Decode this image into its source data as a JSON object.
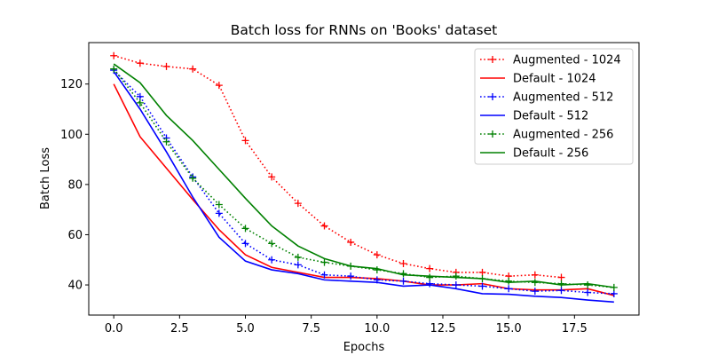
{
  "chart_data": {
    "type": "line",
    "title": "Batch loss for RNNs on 'Books' dataset",
    "xlabel": "Epochs",
    "ylabel": "Batch Loss",
    "xlim": [
      -0.95,
      19.95
    ],
    "ylim": [
      28,
      136.5
    ],
    "xticks": [
      0.0,
      2.5,
      5.0,
      7.5,
      10.0,
      12.5,
      15.0,
      17.5
    ],
    "xtick_labels": [
      "0.0",
      "2.5",
      "5.0",
      "7.5",
      "10.0",
      "12.5",
      "15.0",
      "17.5"
    ],
    "yticks": [
      40,
      60,
      80,
      100,
      120
    ],
    "ytick_labels": [
      "40",
      "60",
      "80",
      "100",
      "120"
    ],
    "grid": false,
    "legend_position": "upper-right",
    "series": [
      {
        "name": "Augmented - 1024",
        "color": "#ff0000",
        "style": "dotted",
        "marker": "plus",
        "x": [
          0,
          1,
          2,
          3,
          4,
          5,
          6,
          7,
          8,
          9,
          10,
          11,
          12,
          13,
          14,
          15,
          16,
          17
        ],
        "y": [
          131.3,
          128.3,
          127.0,
          126.0,
          119.5,
          97.5,
          83.0,
          72.5,
          63.5,
          57.0,
          52.0,
          48.5,
          46.5,
          45.0,
          45.0,
          43.5,
          44.0,
          43.0
        ]
      },
      {
        "name": "Default - 1024",
        "color": "#ff0000",
        "style": "solid",
        "marker": "none",
        "x": [
          0,
          1,
          2,
          3,
          4,
          5,
          6,
          7,
          8,
          9,
          10,
          11,
          12,
          13,
          14,
          15,
          16,
          17,
          18,
          19
        ],
        "y": [
          120.0,
          99.0,
          86.5,
          74.0,
          62.0,
          52.0,
          47.0,
          45.0,
          43.0,
          43.0,
          42.5,
          41.5,
          40.0,
          40.0,
          40.5,
          38.5,
          38.0,
          38.0,
          38.5,
          35.8
        ]
      },
      {
        "name": "Augmented - 512",
        "color": "#0000ff",
        "style": "dotted",
        "marker": "plus",
        "x": [
          0,
          1,
          2,
          3,
          4,
          5,
          6,
          7,
          8,
          9,
          10,
          11,
          12,
          13,
          14,
          15,
          16,
          17,
          18,
          19
        ],
        "y": [
          125.5,
          115.0,
          98.5,
          83.0,
          68.5,
          56.5,
          50.0,
          48.0,
          44.0,
          43.5,
          42.0,
          41.5,
          40.5,
          40.0,
          39.5,
          38.5,
          37.5,
          37.8,
          37.0,
          36.5
        ]
      },
      {
        "name": "Default - 512",
        "color": "#0000ff",
        "style": "solid",
        "marker": "none",
        "x": [
          0,
          1,
          2,
          3,
          4,
          5,
          6,
          7,
          8,
          9,
          10,
          11,
          12,
          13,
          14,
          15,
          16,
          17,
          18,
          19
        ],
        "y": [
          125.0,
          110.0,
          93.0,
          75.0,
          59.0,
          49.5,
          46.0,
          44.5,
          42.0,
          41.5,
          41.0,
          39.5,
          40.0,
          38.5,
          36.5,
          36.3,
          35.5,
          35.0,
          34.0,
          33.2
        ]
      },
      {
        "name": "Augmented - 256",
        "color": "#008000",
        "style": "dotted",
        "marker": "plus",
        "x": [
          0,
          1,
          2,
          3,
          4,
          5,
          6,
          7,
          8,
          9,
          10,
          11,
          12,
          13,
          14,
          15,
          16,
          17,
          18,
          19
        ],
        "y": [
          126.0,
          112.5,
          97.0,
          82.5,
          72.0,
          62.5,
          56.5,
          51.0,
          49.0,
          47.5,
          46.0,
          44.5,
          43.0,
          43.5,
          42.5,
          41.5,
          41.0,
          40.5,
          40.0,
          39.0
        ]
      },
      {
        "name": "Default - 256",
        "color": "#008000",
        "style": "solid",
        "marker": "none",
        "x": [
          0,
          1,
          2,
          3,
          4,
          5,
          6,
          7,
          8,
          9,
          10,
          11,
          12,
          13,
          14,
          15,
          16,
          17,
          18,
          19
        ],
        "y": [
          128.0,
          120.5,
          107.5,
          97.5,
          86.0,
          74.5,
          63.5,
          55.5,
          50.5,
          47.5,
          46.5,
          44.0,
          43.5,
          43.0,
          42.5,
          41.0,
          41.5,
          40.0,
          40.5,
          39.0
        ]
      }
    ]
  }
}
